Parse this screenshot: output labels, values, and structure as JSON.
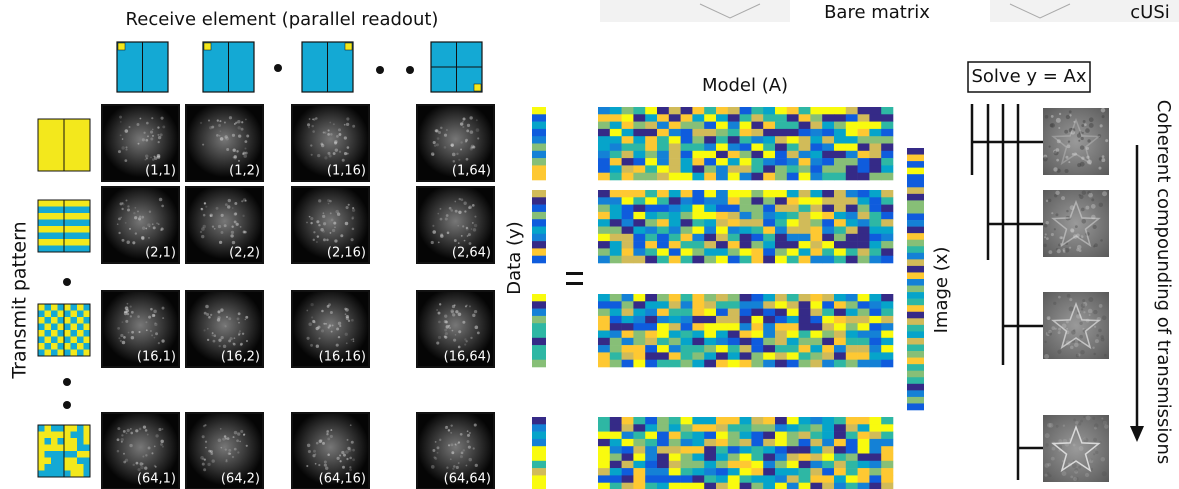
{
  "header": {
    "bare_matrix": "Bare matrix",
    "cusi": "cUSi",
    "receive": "Receive element (parallel readout)",
    "transmit": "Transmit pattern"
  },
  "cells": [
    [
      "(1,1)",
      "(1,2)",
      "(1,16)",
      "(1,64)"
    ],
    [
      "(2,1)",
      "(2,2)",
      "(2,16)",
      "(2,64)"
    ],
    [
      "(16,1)",
      "(16,2)",
      "(16,16)",
      "(16,64)"
    ],
    [
      "(64,1)",
      "(64,2)",
      "(64,16)",
      "(64,64)"
    ]
  ],
  "data_label": "Data (y)",
  "model_label": "Model (A)",
  "image_label": "Image (x)",
  "solve": "Solve y = Ax",
  "compounding": "Coherent compounding of transmissions"
}
